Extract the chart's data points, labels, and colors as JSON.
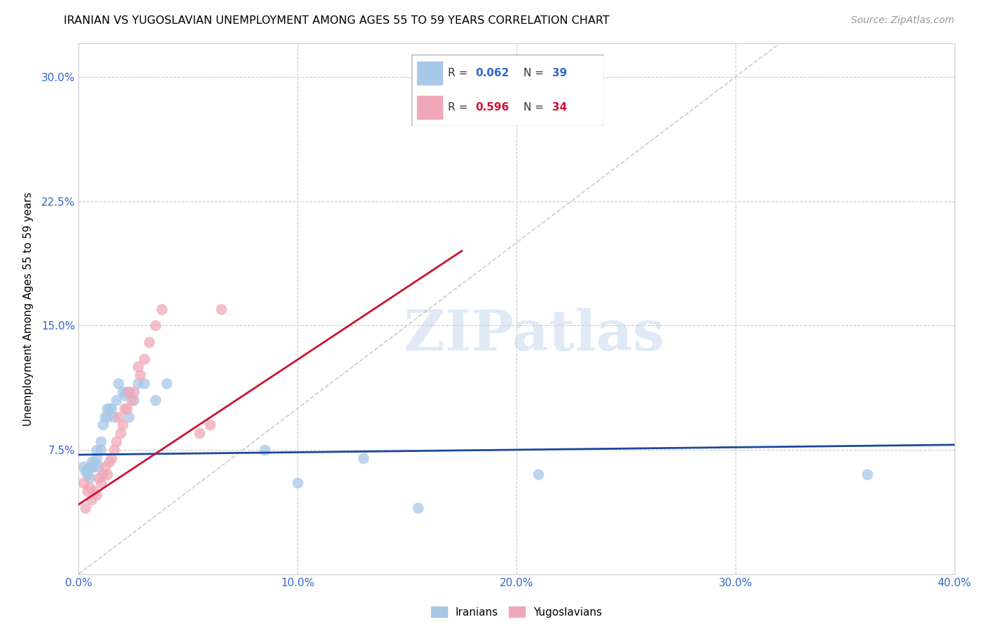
{
  "title": "IRANIAN VS YUGOSLAVIAN UNEMPLOYMENT AMONG AGES 55 TO 59 YEARS CORRELATION CHART",
  "source": "Source: ZipAtlas.com",
  "ylabel": "Unemployment Among Ages 55 to 59 years",
  "xlim": [
    0.0,
    0.4
  ],
  "ylim": [
    0.0,
    0.32
  ],
  "xticks": [
    0.0,
    0.1,
    0.2,
    0.3,
    0.4
  ],
  "yticks": [
    0.075,
    0.15,
    0.225,
    0.3
  ],
  "ytick_labels": [
    "7.5%",
    "15.0%",
    "22.5%",
    "30.0%"
  ],
  "xtick_labels": [
    "0.0%",
    "10.0%",
    "20.0%",
    "30.0%",
    "40.0%"
  ],
  "iranians_R": "0.062",
  "iranians_N": "39",
  "yugoslavians_R": "0.596",
  "yugoslavians_N": "34",
  "iranians_color": "#a8c8e8",
  "yugoslavians_color": "#f0a8b8",
  "iranians_line_color": "#1a4a9a",
  "yugoslavians_line_color": "#cc1133",
  "diagonal_line_color": "#cccccc",
  "watermark": "ZIPatlas",
  "iranians_x": [
    0.002,
    0.003,
    0.004,
    0.004,
    0.005,
    0.005,
    0.006,
    0.006,
    0.007,
    0.007,
    0.008,
    0.008,
    0.009,
    0.01,
    0.01,
    0.011,
    0.012,
    0.013,
    0.013,
    0.014,
    0.015,
    0.016,
    0.017,
    0.018,
    0.02,
    0.021,
    0.022,
    0.023,
    0.025,
    0.027,
    0.03,
    0.035,
    0.04,
    0.085,
    0.1,
    0.13,
    0.155,
    0.21,
    0.36
  ],
  "iranians_y": [
    0.065,
    0.062,
    0.06,
    0.063,
    0.058,
    0.065,
    0.065,
    0.068,
    0.065,
    0.068,
    0.07,
    0.075,
    0.065,
    0.075,
    0.08,
    0.09,
    0.095,
    0.095,
    0.1,
    0.1,
    0.1,
    0.095,
    0.105,
    0.115,
    0.11,
    0.108,
    0.11,
    0.095,
    0.105,
    0.115,
    0.115,
    0.105,
    0.115,
    0.075,
    0.055,
    0.07,
    0.04,
    0.06,
    0.06
  ],
  "yugoslavians_x": [
    0.002,
    0.003,
    0.004,
    0.005,
    0.006,
    0.007,
    0.008,
    0.009,
    0.01,
    0.011,
    0.012,
    0.013,
    0.014,
    0.015,
    0.016,
    0.017,
    0.018,
    0.019,
    0.02,
    0.021,
    0.022,
    0.023,
    0.024,
    0.025,
    0.027,
    0.028,
    0.03,
    0.032,
    0.035,
    0.038,
    0.055,
    0.06,
    0.065,
    0.175
  ],
  "yugoslavians_y": [
    0.055,
    0.04,
    0.05,
    0.052,
    0.045,
    0.05,
    0.048,
    0.058,
    0.055,
    0.06,
    0.065,
    0.06,
    0.068,
    0.07,
    0.075,
    0.08,
    0.095,
    0.085,
    0.09,
    0.1,
    0.1,
    0.11,
    0.105,
    0.11,
    0.125,
    0.12,
    0.13,
    0.14,
    0.15,
    0.16,
    0.085,
    0.09,
    0.16,
    0.275
  ],
  "iran_line_x0": 0.0,
  "iran_line_x1": 0.4,
  "iran_line_y0": 0.072,
  "iran_line_y1": 0.078,
  "yugo_line_x0": 0.0,
  "yugo_line_x1": 0.175,
  "yugo_line_y0": 0.042,
  "yugo_line_y1": 0.195
}
